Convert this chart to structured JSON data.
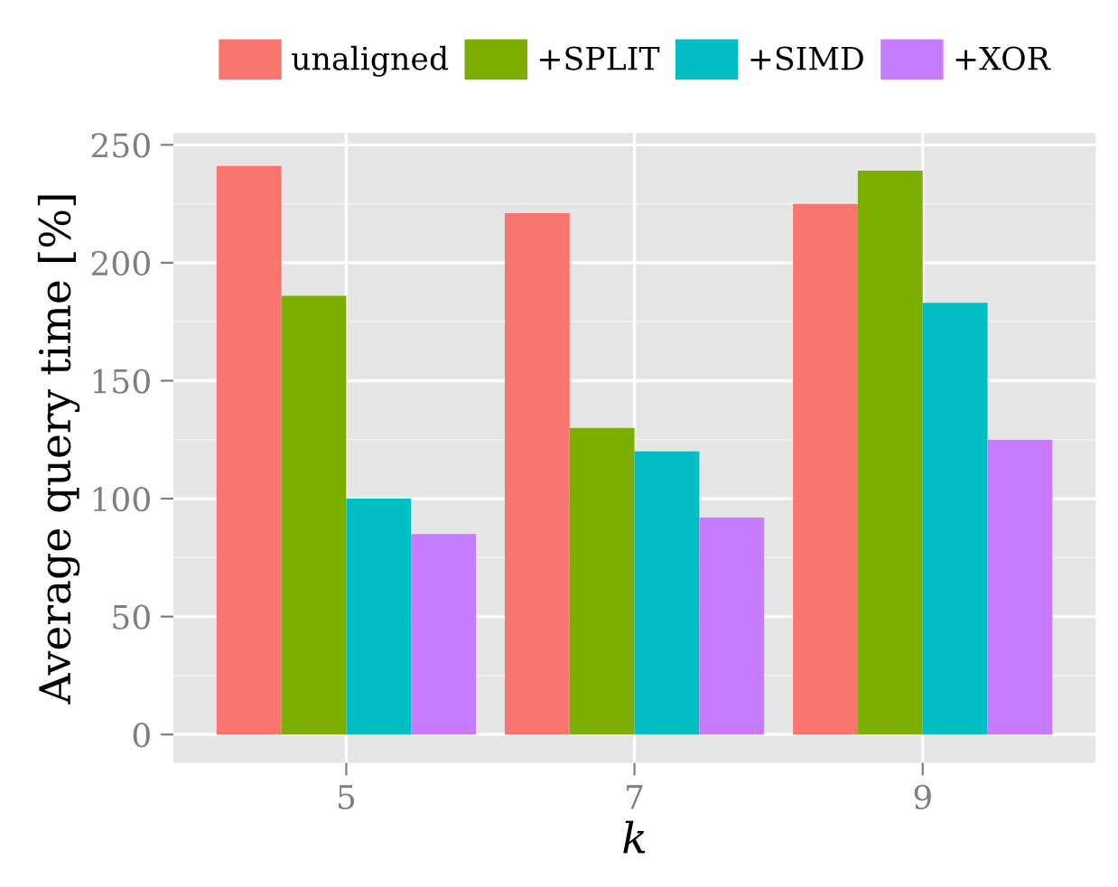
{
  "chart_data": {
    "type": "bar",
    "xlabel": "k",
    "ylabel": "Average query time [%]",
    "categories": [
      "5",
      "7",
      "9"
    ],
    "series": [
      {
        "name": "unaligned",
        "color": "#f8766d",
        "values": [
          241,
          221,
          225
        ]
      },
      {
        "name": "+SPLIT",
        "color": "#7cae00",
        "values": [
          186,
          130,
          239
        ]
      },
      {
        "name": "+SIMD",
        "color": "#00bfc4",
        "values": [
          100,
          120,
          183
        ]
      },
      {
        "name": "+XOR",
        "color": "#c77cff",
        "values": [
          85,
          92,
          125
        ]
      }
    ],
    "ylim": [
      -12,
      255
    ],
    "yticks": [
      0,
      50,
      100,
      150,
      200,
      250
    ],
    "grid": true,
    "legend": "top"
  }
}
